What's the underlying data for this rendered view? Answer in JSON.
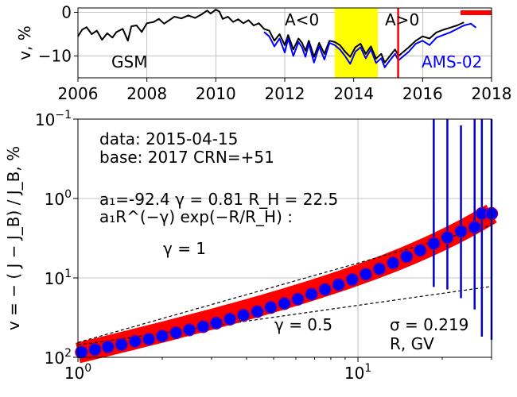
{
  "chart_data": [
    {
      "type": "line",
      "ylabel": "v, %",
      "xlim": [
        2006,
        2018
      ],
      "ylim": [
        -15,
        1
      ],
      "xticks": [
        "2006",
        "2008",
        "2010",
        "2012",
        "2014",
        "2016",
        "2018"
      ],
      "yticks": [
        "0",
        "−10"
      ],
      "grid": true,
      "annotations": {
        "gsm": "GSM",
        "ams": "AMS-02",
        "a_neg": "A<0",
        "a_pos": "A>0"
      },
      "colors": {
        "gsm": "#000000",
        "ams": "#0000ff",
        "highlight": "#ffff00",
        "marker": "#ff0000"
      },
      "yellow_span": [
        2013.45,
        2014.7
      ],
      "red_vertical_line": 2015.29,
      "red_bar": [
        2017.1,
        2018
      ],
      "series": [
        {
          "name": "GSM",
          "color": "#000000",
          "points": [
            [
              2006.0,
              -5.5
            ],
            [
              2006.12,
              -4.0
            ],
            [
              2006.25,
              -3.4
            ],
            [
              2006.4,
              -5.0
            ],
            [
              2006.55,
              -4.2
            ],
            [
              2006.7,
              -6.3
            ],
            [
              2006.85,
              -4.8
            ],
            [
              2007.0,
              -5.8
            ],
            [
              2007.12,
              -4.5
            ],
            [
              2007.3,
              -3.8
            ],
            [
              2007.45,
              -6.5
            ],
            [
              2007.55,
              -3.2
            ],
            [
              2007.7,
              -3.0
            ],
            [
              2007.85,
              -4.5
            ],
            [
              2008.0,
              -2.5
            ],
            [
              2008.2,
              -2.2
            ],
            [
              2008.35,
              -1.5
            ],
            [
              2008.5,
              -2.6
            ],
            [
              2008.65,
              -1.8
            ],
            [
              2008.8,
              -1.0
            ],
            [
              2009.0,
              -1.4
            ],
            [
              2009.2,
              -0.7
            ],
            [
              2009.4,
              -1.3
            ],
            [
              2009.6,
              -0.4
            ],
            [
              2009.75,
              0.4
            ],
            [
              2009.85,
              -0.3
            ],
            [
              2010.0,
              0.6
            ],
            [
              2010.1,
              0.2
            ],
            [
              2010.2,
              -1.5
            ],
            [
              2010.35,
              -1.0
            ],
            [
              2010.5,
              -2.2
            ],
            [
              2010.65,
              -1.6
            ],
            [
              2010.8,
              -2.5
            ],
            [
              2010.95,
              -1.8
            ],
            [
              2011.1,
              -3.0
            ],
            [
              2011.25,
              -2.5
            ],
            [
              2011.4,
              -3.8
            ],
            [
              2011.55,
              -4.2
            ],
            [
              2011.7,
              -6.5
            ],
            [
              2011.85,
              -5.0
            ],
            [
              2012.0,
              -7.5
            ],
            [
              2012.1,
              -5.2
            ],
            [
              2012.25,
              -8.5
            ],
            [
              2012.4,
              -6.0
            ],
            [
              2012.5,
              -7.0
            ],
            [
              2012.6,
              -8.8
            ],
            [
              2012.7,
              -6.5
            ],
            [
              2012.85,
              -10.2
            ],
            [
              2013.0,
              -7.0
            ],
            [
              2013.15,
              -9.5
            ],
            [
              2013.3,
              -6.5
            ],
            [
              2013.45,
              -6.8
            ],
            [
              2013.6,
              -7.5
            ],
            [
              2013.75,
              -9.0
            ],
            [
              2013.9,
              -10.2
            ],
            [
              2014.05,
              -8.0
            ],
            [
              2014.2,
              -7.2
            ],
            [
              2014.35,
              -9.5
            ],
            [
              2014.5,
              -7.8
            ],
            [
              2014.65,
              -10.6
            ],
            [
              2014.8,
              -9.5
            ],
            [
              2014.9,
              -11.5
            ],
            [
              2015.05,
              -10.0
            ],
            [
              2015.2,
              -8.5
            ],
            [
              2015.3,
              -10.0
            ],
            [
              2015.45,
              -9.0
            ],
            [
              2015.6,
              -8.0
            ],
            [
              2015.8,
              -6.5
            ],
            [
              2016.0,
              -5.5
            ],
            [
              2016.2,
              -6.0
            ],
            [
              2016.4,
              -4.6
            ],
            [
              2016.6,
              -4.0
            ],
            [
              2016.8,
              -3.5
            ],
            [
              2017.0,
              -3.0
            ],
            [
              2017.2,
              -2.3
            ]
          ]
        },
        {
          "name": "AMS-02",
          "color": "#0000ff",
          "points": [
            [
              2011.4,
              -4.5
            ],
            [
              2011.55,
              -5.5
            ],
            [
              2011.7,
              -7.8
            ],
            [
              2011.85,
              -6.0
            ],
            [
              2012.0,
              -9.2
            ],
            [
              2012.1,
              -6.0
            ],
            [
              2012.25,
              -10.0
            ],
            [
              2012.4,
              -6.8
            ],
            [
              2012.5,
              -8.0
            ],
            [
              2012.6,
              -10.2
            ],
            [
              2012.7,
              -7.2
            ],
            [
              2012.85,
              -11.5
            ],
            [
              2013.0,
              -7.8
            ],
            [
              2013.15,
              -10.8
            ],
            [
              2013.3,
              -7.0
            ],
            [
              2013.45,
              -7.5
            ],
            [
              2013.6,
              -8.5
            ],
            [
              2013.75,
              -10.0
            ],
            [
              2013.9,
              -11.8
            ],
            [
              2014.05,
              -9.0
            ],
            [
              2014.2,
              -8.0
            ],
            [
              2014.35,
              -10.5
            ],
            [
              2014.5,
              -8.5
            ],
            [
              2014.65,
              -11.6
            ],
            [
              2014.8,
              -10.5
            ],
            [
              2014.9,
              -12.6
            ],
            [
              2015.05,
              -11.0
            ],
            [
              2015.2,
              -9.5
            ],
            [
              2015.3,
              -11.0
            ],
            [
              2015.45,
              -10.0
            ],
            [
              2015.6,
              -9.0
            ],
            [
              2015.8,
              -7.2
            ],
            [
              2016.0,
              -6.5
            ],
            [
              2016.2,
              -7.5
            ],
            [
              2016.4,
              -5.8
            ],
            [
              2016.6,
              -5.2
            ],
            [
              2016.8,
              -4.6
            ],
            [
              2017.0,
              -3.8
            ],
            [
              2017.2,
              -3.0
            ],
            [
              2017.4,
              -2.6
            ],
            [
              2017.55,
              -3.5
            ]
          ]
        }
      ]
    },
    {
      "type": "scatter",
      "ylabel": "v = − ( J − J_B) / J_B, %",
      "xlabel": "R, GV",
      "xscale": "log",
      "yscale": "log-inverted",
      "xlim": [
        1,
        30
      ],
      "ylim": [
        0.1,
        100
      ],
      "xticks": [
        {
          "v": 1,
          "b": "10",
          "e": "0"
        },
        {
          "v": 10,
          "b": "10",
          "e": "1"
        }
      ],
      "yticks": [
        {
          "v": 0.1,
          "b": "10",
          "e": "−1"
        },
        {
          "v": 1,
          "b": "10",
          "e": "0"
        },
        {
          "v": 10,
          "b": "10",
          "e": "1"
        },
        {
          "v": 100,
          "b": "10",
          "e": "2"
        }
      ],
      "grid": true,
      "text": {
        "data_line": "data: 2015-04-15",
        "base_line": "base: 2017   CRN=+51",
        "params_line": "a₁=-92.4  γ = 0.81  R_H = 22.5",
        "formula_line": "a₁R^(−γ) exp(−R/R_H) :",
        "gamma1": "γ = 1",
        "gamma05": "γ = 0.5",
        "sigma": "σ = 0.219"
      },
      "colors": {
        "fit_band": "#ff0000",
        "points_fill": "#0000ff",
        "points_edge": "#800080",
        "errorbars": "#0000cc",
        "ref_lines": "#000000"
      },
      "reference_lines": [
        {
          "name": "gamma=1",
          "points": [
            [
              1,
              65
            ],
            [
              30,
              2.17
            ]
          ]
        },
        {
          "name": "gamma=0.5",
          "points": [
            [
              1,
              70
            ],
            [
              30,
              12.8
            ]
          ]
        }
      ],
      "fit": {
        "a1": -92.4,
        "gamma": 0.81,
        "RH": 22.5
      },
      "points": [
        {
          "R": 1.03,
          "v": 86.0
        },
        {
          "R": 1.15,
          "v": 80.0
        },
        {
          "R": 1.28,
          "v": 74.0
        },
        {
          "R": 1.43,
          "v": 69.0
        },
        {
          "R": 1.6,
          "v": 63.0
        },
        {
          "R": 1.79,
          "v": 59.0
        },
        {
          "R": 2.0,
          "v": 54.0
        },
        {
          "R": 2.24,
          "v": 49.0
        },
        {
          "R": 2.5,
          "v": 45.0
        },
        {
          "R": 2.8,
          "v": 41.0
        },
        {
          "R": 3.12,
          "v": 37.0
        },
        {
          "R": 3.49,
          "v": 33.0
        },
        {
          "R": 3.9,
          "v": 29.5
        },
        {
          "R": 4.37,
          "v": 26.5
        },
        {
          "R": 4.88,
          "v": 23.5
        },
        {
          "R": 5.46,
          "v": 21.0
        },
        {
          "R": 6.1,
          "v": 18.5
        },
        {
          "R": 6.82,
          "v": 16.0
        },
        {
          "R": 7.63,
          "v": 14.0
        },
        {
          "R": 8.53,
          "v": 12.2
        },
        {
          "R": 9.54,
          "v": 10.5
        },
        {
          "R": 10.67,
          "v": 9.0
        },
        {
          "R": 11.93,
          "v": 7.7
        },
        {
          "R": 13.34,
          "v": 6.5
        },
        {
          "R": 14.92,
          "v": 5.4
        },
        {
          "R": 16.68,
          "v": 4.5
        },
        {
          "R": 18.65,
          "v": 3.7
        },
        {
          "R": 20.86,
          "v": 3.1
        },
        {
          "R": 23.33,
          "v": 2.6
        },
        {
          "R": 26.1,
          "v": 2.3
        },
        {
          "R": 27.7,
          "v": 1.55
        },
        {
          "R": 30.0,
          "v": 1.55
        }
      ],
      "errors": [
        {
          "R": 18.65,
          "lo": 0.1,
          "hi": 13.0
        },
        {
          "R": 20.86,
          "lo": 0.1,
          "hi": 14.0
        },
        {
          "R": 23.33,
          "lo": 0.12,
          "hi": 18.0
        },
        {
          "R": 26.1,
          "lo": 0.1,
          "hi": 25.0
        },
        {
          "R": 27.7,
          "lo": 0.1,
          "hi": 55.0
        },
        {
          "R": 30.0,
          "lo": 0.1,
          "hi": 60.0
        }
      ]
    }
  ]
}
